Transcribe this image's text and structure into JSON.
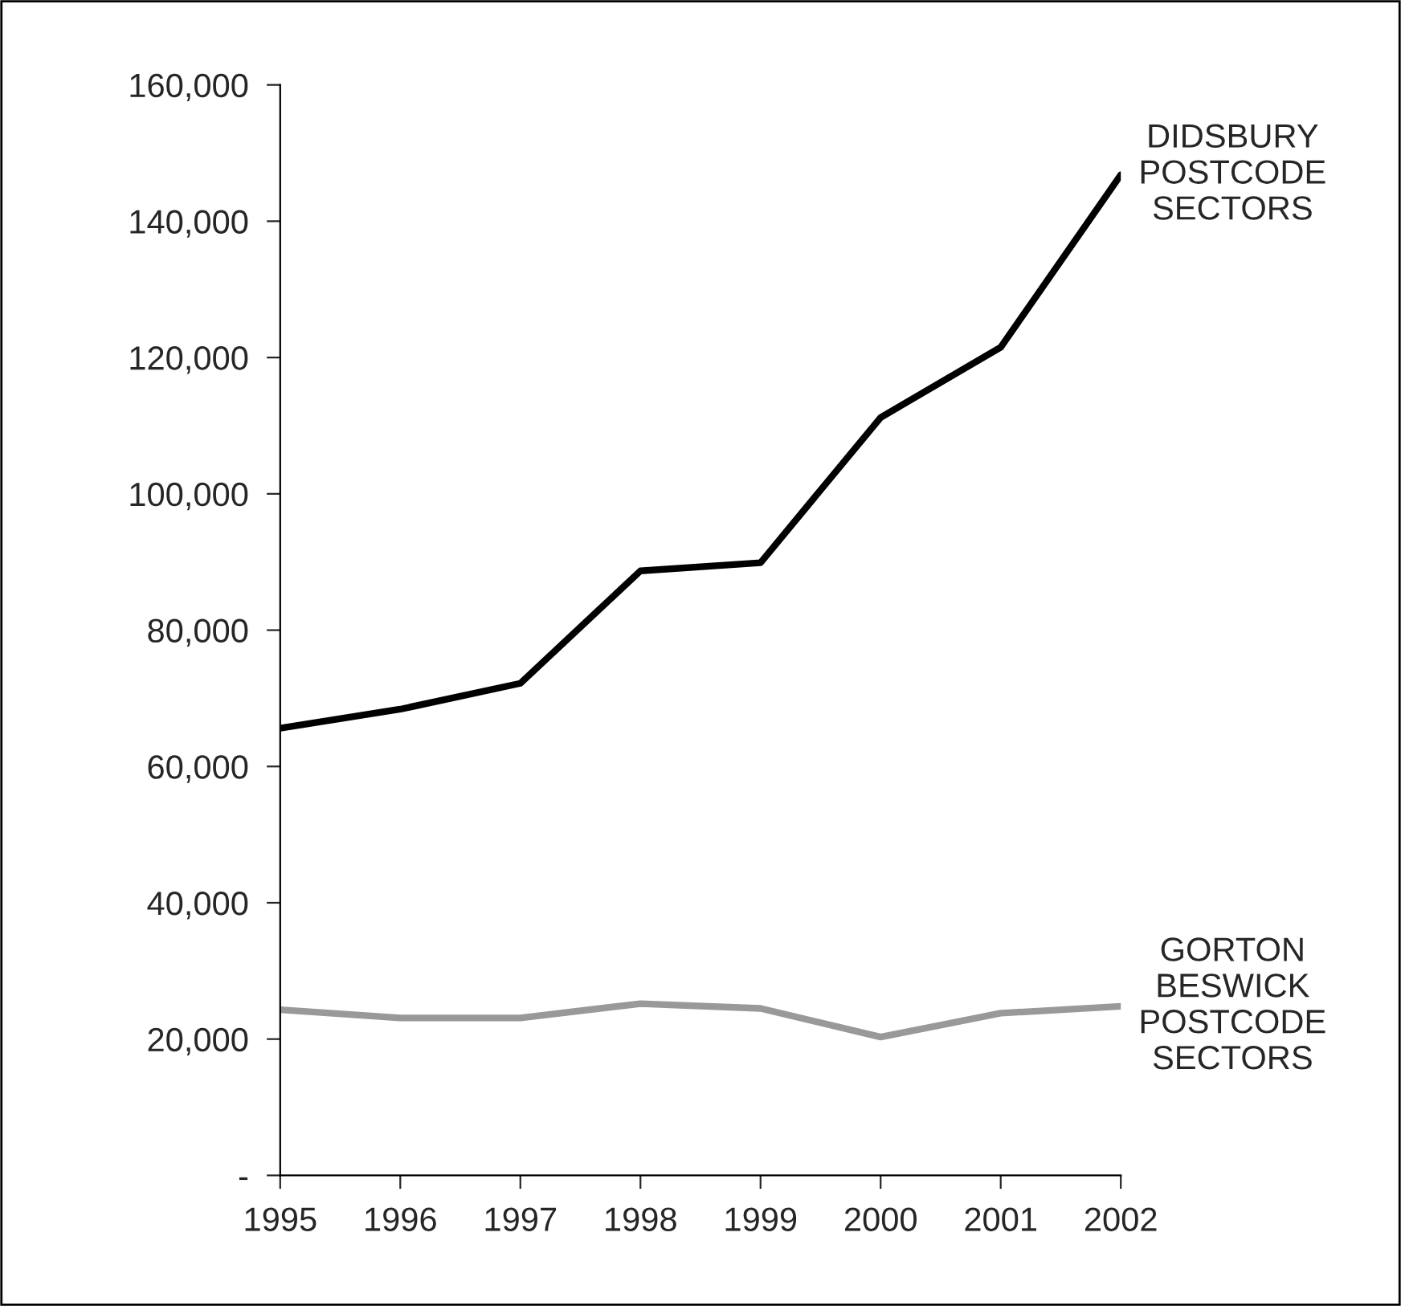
{
  "chart_data": {
    "type": "line",
    "x": [
      1995,
      1996,
      1997,
      1998,
      1999,
      2000,
      2001,
      2002
    ],
    "series": [
      {
        "name": "DIDSBURY\nPOSTCODE\nSECTORS",
        "color": "#000000",
        "values": [
          65600,
          68400,
          72200,
          88700,
          89900,
          111200,
          121500,
          146800
        ]
      },
      {
        "name": "GORTON\nBESWICK\nPOSTCODE\nSECTORS",
        "color": "#999999",
        "values": [
          24300,
          23100,
          23100,
          25200,
          24500,
          20300,
          23800,
          24800
        ]
      }
    ],
    "xlim": [
      1995,
      2002
    ],
    "xticks": [
      1995,
      1996,
      1997,
      1998,
      1999,
      2000,
      2001,
      2002
    ],
    "ylim": [
      0,
      160000
    ],
    "yticks": [
      {
        "value": 0,
        "label": "-"
      },
      {
        "value": 20000,
        "label": "20,000"
      },
      {
        "value": 40000,
        "label": "40,000"
      },
      {
        "value": 60000,
        "label": "60,000"
      },
      {
        "value": 80000,
        "label": "80,000"
      },
      {
        "value": 100000,
        "label": "100,000"
      },
      {
        "value": 120000,
        "label": "120,000"
      },
      {
        "value": 140000,
        "label": "140,000"
      },
      {
        "value": 160000,
        "label": "160,000"
      }
    ],
    "grid": false,
    "legend": false,
    "marker": "none",
    "line_style": "solid"
  }
}
